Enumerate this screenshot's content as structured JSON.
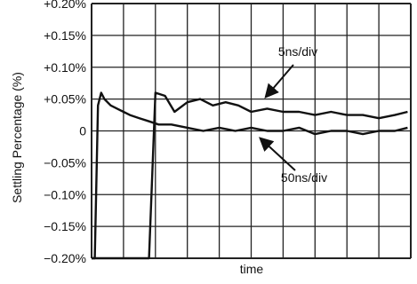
{
  "chart_data": {
    "type": "line",
    "title": "",
    "xlabel": "time",
    "ylabel": "Settling Percentage (%)",
    "ylim": [
      -0.2,
      0.2
    ],
    "y_ticks": [
      {
        "value": 0.2,
        "label": "+0.20%"
      },
      {
        "value": 0.15,
        "label": "+0.15%"
      },
      {
        "value": 0.1,
        "label": "+0.10%"
      },
      {
        "value": 0.05,
        "label": "+0.05%"
      },
      {
        "value": 0.0,
        "label": "0"
      },
      {
        "value": -0.05,
        "label": "−0.05%"
      },
      {
        "value": -0.1,
        "label": "−0.10%"
      },
      {
        "value": -0.15,
        "label": "−0.15%"
      },
      {
        "value": -0.2,
        "label": "−0.20%"
      }
    ],
    "x_divisions": 10,
    "grid": true,
    "series": [
      {
        "name": "5ns/div",
        "x": [
          0,
          0.6,
          1.8,
          2.0,
          2.3,
          2.6,
          3.0,
          3.4,
          3.8,
          4.2,
          4.6,
          5.0,
          5.5,
          6.0,
          6.5,
          7.0,
          7.5,
          8.0,
          8.5,
          9.0,
          9.5,
          9.9
        ],
        "values": [
          -0.2,
          -0.2,
          -0.2,
          0.06,
          0.055,
          0.03,
          0.045,
          0.05,
          0.04,
          0.045,
          0.04,
          0.03,
          0.035,
          0.03,
          0.03,
          0.025,
          0.03,
          0.025,
          0.025,
          0.02,
          0.025,
          0.03
        ]
      },
      {
        "name": "50ns/div",
        "x": [
          0,
          0.1,
          0.2,
          0.3,
          0.4,
          0.6,
          0.8,
          1.0,
          1.2,
          1.5,
          1.8,
          2.1,
          2.5,
          3.0,
          3.5,
          4.0,
          4.5,
          5.0,
          5.5,
          6.0,
          6.5,
          7.0,
          7.5,
          8.0,
          8.5,
          9.0,
          9.5,
          9.9
        ],
        "values": [
          -0.2,
          -0.2,
          0.04,
          0.06,
          0.05,
          0.04,
          0.035,
          0.03,
          0.025,
          0.02,
          0.015,
          0.01,
          0.01,
          0.005,
          0.0,
          0.005,
          0.0,
          0.005,
          0.0,
          0.0,
          0.005,
          -0.005,
          0.0,
          0.0,
          -0.005,
          0.0,
          0.0,
          0.005
        ]
      }
    ],
    "annotations": [
      {
        "text": "5ns/div",
        "points_to": "5ns/div"
      },
      {
        "text": "50ns/div",
        "points_to": "50ns/div"
      }
    ],
    "colors": {
      "line": "#111111",
      "grid": "#222222",
      "background": "#ffffff"
    }
  }
}
